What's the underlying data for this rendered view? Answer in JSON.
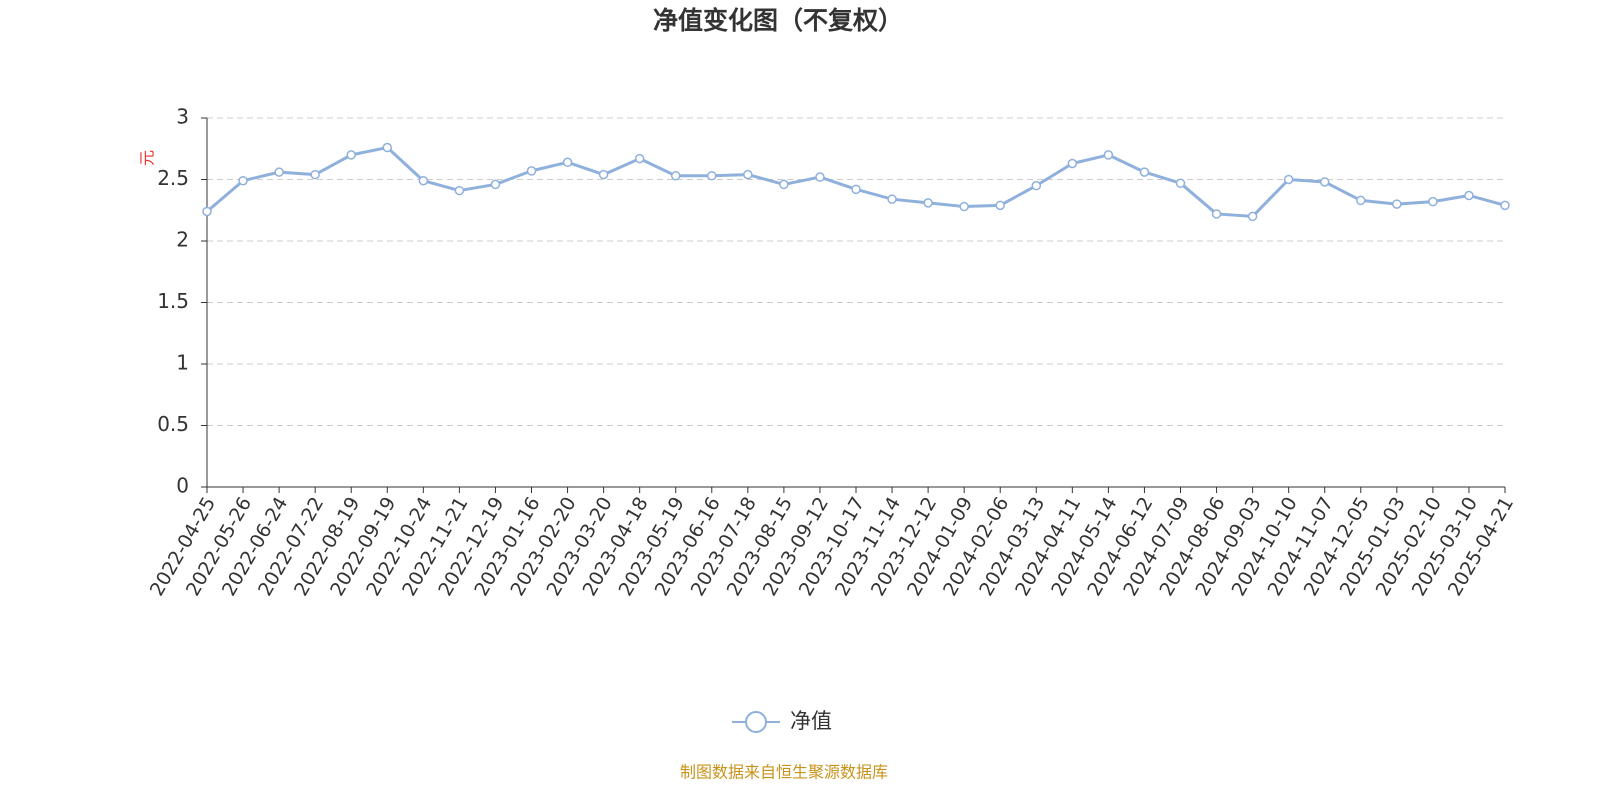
{
  "chart_data": {
    "type": "line",
    "title": "净值变化图（不复权）",
    "y_label": "元",
    "source": "制图数据来自恒生聚源数据库",
    "categories": [
      "2022-04-25",
      "2022-05-26",
      "2022-06-24",
      "2022-07-22",
      "2022-08-19",
      "2022-09-19",
      "2022-10-24",
      "2022-11-21",
      "2022-12-19",
      "2023-01-16",
      "2023-02-20",
      "2023-03-20",
      "2023-04-18",
      "2023-05-19",
      "2023-06-16",
      "2023-07-18",
      "2023-08-15",
      "2023-09-12",
      "2023-10-17",
      "2023-11-14",
      "2023-12-12",
      "2024-01-09",
      "2024-02-06",
      "2024-03-13",
      "2024-04-11",
      "2024-05-14",
      "2024-06-12",
      "2024-07-09",
      "2024-08-06",
      "2024-09-03",
      "2024-10-10",
      "2024-11-07",
      "2024-12-05",
      "2025-01-03",
      "2025-02-10",
      "2025-03-10",
      "2025-04-21"
    ],
    "series": [
      {
        "name": "净值",
        "color": "#8fb0dc",
        "values": [
          2.24,
          2.49,
          2.56,
          2.54,
          2.7,
          2.76,
          2.49,
          2.41,
          2.46,
          2.57,
          2.64,
          2.54,
          2.67,
          2.53,
          2.53,
          2.54,
          2.46,
          2.52,
          2.42,
          2.34,
          2.31,
          2.28,
          2.29,
          2.45,
          2.63,
          2.7,
          2.56,
          2.47,
          2.22,
          2.2,
          2.5,
          2.48,
          2.33,
          2.3,
          2.32,
          2.37,
          2.29
        ]
      }
    ],
    "ylim": [
      0,
      3
    ],
    "yticks": [
      0,
      0.5,
      1,
      1.5,
      2,
      2.5,
      3
    ],
    "grid": true,
    "legend": "bottom"
  }
}
